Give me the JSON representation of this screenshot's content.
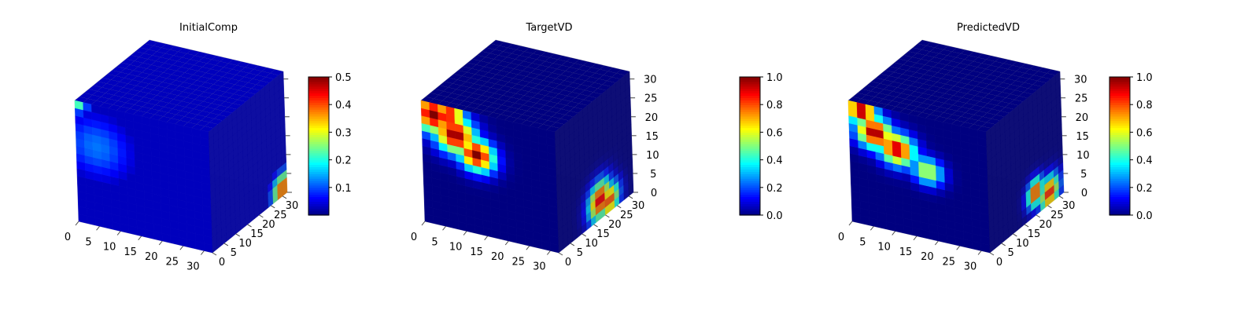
{
  "chart_data": [
    {
      "type": "heatmap",
      "title": "InitialComp",
      "xlabel": "",
      "ylabel": "",
      "zlabel": "",
      "x_ticks": [
        "0",
        "5",
        "10",
        "15",
        "20",
        "25",
        "30"
      ],
      "y_ticks": [
        "0",
        "5",
        "10",
        "15",
        "20",
        "25",
        "30"
      ],
      "z_ticks": [
        "",
        "",
        "",
        "",
        "",
        "",
        ""
      ],
      "xlim": [
        0,
        32
      ],
      "ylim": [
        0,
        32
      ],
      "zlim": [
        0,
        32
      ],
      "colormap": "jet",
      "colorbar": {
        "min": 0.0,
        "max": 0.5,
        "ticks": [
          "0.1",
          "0.2",
          "0.3",
          "0.4",
          "0.5"
        ],
        "tick_values": [
          0.1,
          0.2,
          0.3,
          0.4,
          0.5
        ]
      },
      "field": {
        "base_value": 0.03,
        "front_face_blobs": [
          {
            "x": 5,
            "z": 21,
            "radius": 6,
            "value": 0.12
          },
          {
            "x": 1,
            "z": 31,
            "radius": 1.5,
            "value": 0.22
          }
        ],
        "side_face_blobs": [
          {
            "y": 30,
            "z": 2,
            "radius": 3,
            "value": 0.45
          }
        ]
      }
    },
    {
      "type": "heatmap",
      "title": "TargetVD",
      "xlabel": "",
      "ylabel": "",
      "zlabel": "",
      "x_ticks": [
        "0",
        "5",
        "10",
        "15",
        "20",
        "25",
        "30"
      ],
      "y_ticks": [
        "0",
        "5",
        "10",
        "15",
        "20",
        "25",
        "30"
      ],
      "z_ticks": [
        "0",
        "5",
        "10",
        "15",
        "20",
        "25",
        "30"
      ],
      "xlim": [
        0,
        32
      ],
      "ylim": [
        0,
        32
      ],
      "zlim": [
        0,
        32
      ],
      "colormap": "jet",
      "colorbar": {
        "min": 0.0,
        "max": 1.0,
        "ticks": [
          "0.0",
          "0.2",
          "0.4",
          "0.6",
          "0.8",
          "1.0"
        ],
        "tick_values": [
          0.0,
          0.2,
          0.4,
          0.6,
          0.8,
          1.0
        ]
      },
      "field": {
        "base_value": 0.0,
        "front_face_blobs": [
          {
            "x": 3,
            "z": 29,
            "radius": 3.5,
            "value": 1.0
          },
          {
            "x": 8,
            "z": 25,
            "radius": 3.5,
            "value": 1.0
          },
          {
            "x": 13,
            "z": 21,
            "radius": 3,
            "value": 1.0
          },
          {
            "x": 7,
            "z": 30,
            "radius": 2.5,
            "value": 0.9
          }
        ],
        "side_face_blobs": [
          {
            "y": 18,
            "z": 5,
            "radius": 3.5,
            "value": 1.0
          },
          {
            "y": 22,
            "z": 3,
            "radius": 3,
            "value": 0.9
          }
        ]
      }
    },
    {
      "type": "heatmap",
      "title": "PredictedVD",
      "xlabel": "",
      "ylabel": "",
      "zlabel": "",
      "x_ticks": [
        "0",
        "5",
        "10",
        "15",
        "20",
        "25",
        "30"
      ],
      "y_ticks": [
        "0",
        "5",
        "10",
        "15",
        "20",
        "25",
        "30"
      ],
      "z_ticks": [
        "0",
        "5",
        "10",
        "15",
        "20",
        "25",
        "30"
      ],
      "xlim": [
        0,
        32
      ],
      "ylim": [
        0,
        32
      ],
      "zlim": [
        0,
        32
      ],
      "colormap": "jet",
      "colorbar": {
        "min": 0.0,
        "max": 1.0,
        "ticks": [
          "0.0",
          "0.2",
          "0.4",
          "0.6",
          "0.8",
          "1.0"
        ],
        "tick_values": [
          0.0,
          0.2,
          0.4,
          0.6,
          0.8,
          1.0
        ]
      },
      "field": {
        "base_value": 0.0,
        "front_face_blobs": [
          {
            "x": 3,
            "z": 30,
            "radius": 2.5,
            "value": 1.0
          },
          {
            "x": 6,
            "z": 25,
            "radius": 3,
            "value": 1.0
          },
          {
            "x": 11,
            "z": 22,
            "radius": 3,
            "value": 0.95
          },
          {
            "x": 18,
            "z": 18,
            "radius": 2.5,
            "value": 0.6
          }
        ],
        "side_face_blobs": [
          {
            "y": 20,
            "z": 6,
            "radius": 2.5,
            "value": 0.95
          },
          {
            "y": 26,
            "z": 3,
            "radius": 3,
            "value": 0.95
          }
        ]
      }
    }
  ]
}
